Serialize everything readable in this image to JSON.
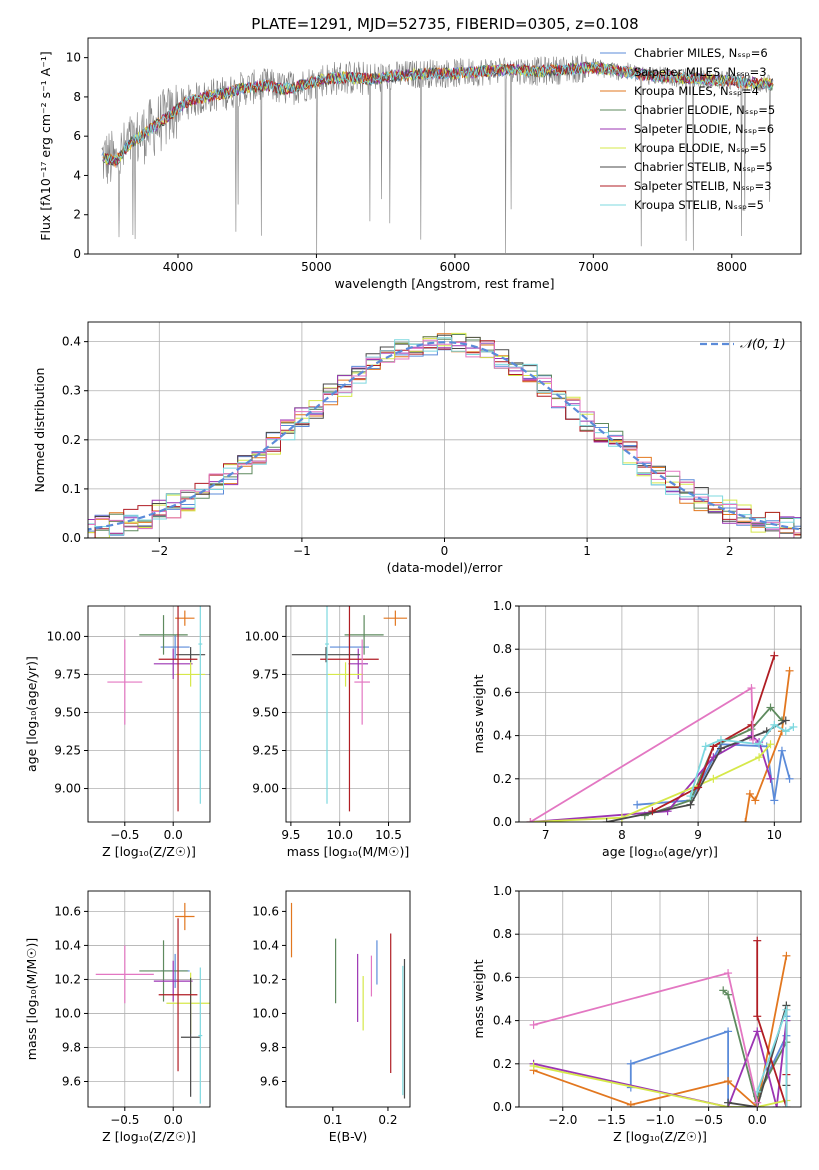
{
  "suptitle": "PLATE=1291, MJD=52735, FIBERID=0305, z=0.108",
  "chart_data": [
    {
      "type": "line",
      "id": "spectrum",
      "xlabel": "wavelength [Angstrom, rest frame]",
      "ylabel": "Flux [fλ10⁻¹⁷ erg cm⁻² s⁻¹ A⁻¹]",
      "xlim": [
        3350,
        8500
      ],
      "ylim": [
        0,
        11
      ],
      "xticks": [
        4000,
        5000,
        6000,
        7000,
        8000
      ],
      "yticks": [
        0,
        2,
        4,
        6,
        8,
        10
      ],
      "grid": false,
      "legend_position": "top-right",
      "data_color": "#808080",
      "data_note_series": [
        {
          "x": [
            3450,
            3550,
            3650,
            3750,
            3850,
            3950,
            4050,
            4150,
            4250,
            4350,
            4450,
            4550,
            4650,
            4750,
            4850,
            4950,
            5050,
            5200,
            5400,
            5600,
            5800,
            6000,
            6200,
            6400,
            6600,
            6800,
            7000,
            7200,
            7400,
            7600,
            7800,
            8000,
            8200,
            8300
          ],
          "y": [
            4.9,
            4.7,
            5.6,
            6.1,
            6.6,
            7.1,
            7.7,
            7.9,
            8.1,
            8.2,
            8.4,
            8.5,
            8.6,
            8.4,
            8.5,
            8.7,
            8.9,
            9.0,
            8.9,
            9.1,
            9.2,
            9.2,
            9.3,
            9.4,
            9.3,
            9.4,
            9.5,
            9.3,
            9.1,
            9.0,
            8.9,
            8.8,
            8.7,
            8.6
          ]
        }
      ],
      "series": [
        {
          "name": "Chabrier MILES, N_SSP=6",
          "color": "#5b8bd9"
        },
        {
          "name": "Salpeter MILES, N_SSP=3",
          "color": "#8d8d8d"
        },
        {
          "name": "Kroupa MILES, N_SSP=4",
          "color": "#e2771f"
        },
        {
          "name": "Chabrier ELODIE, N_SSP=5",
          "color": "#5e8a5e"
        },
        {
          "name": "Salpeter ELODIE, N_SSP=6",
          "color": "#9b34b3"
        },
        {
          "name": "Kroupa ELODIE, N_SSP=5",
          "color": "#d6e84a"
        },
        {
          "name": "Chabrier STELIB, N_SSP=5",
          "color": "#4a4a4a"
        },
        {
          "name": "Salpeter STELIB, N_SSP=3",
          "color": "#b01d24"
        },
        {
          "name": "Kroupa STELIB, N_SSP=5",
          "color": "#7ed8df"
        }
      ]
    },
    {
      "type": "histogram",
      "id": "residuals",
      "xlabel": "(data-model)/error",
      "ylabel": "Normed distribution",
      "xlim": [
        -2.5,
        2.5
      ],
      "ylim": [
        0,
        0.44
      ],
      "xticks": [
        -2,
        -1,
        0,
        1,
        2
      ],
      "yticks": [
        0.0,
        0.1,
        0.2,
        0.3,
        0.4
      ],
      "grid": true,
      "legend_position": "top-right",
      "reference_curve": {
        "label": "𝒩(0, 1)",
        "color": "#5b8bd9",
        "style": "dashed",
        "mean": 0,
        "sigma": 1
      },
      "bin_width": 0.1
    },
    {
      "type": "errorbar",
      "id": "age_vs_Z",
      "xlabel": "Z [log₁₀(Z/Z☉)]",
      "ylabel": "age  [log₁₀(age/yr)]",
      "xlim": [
        -0.88,
        0.38
      ],
      "ylim": [
        8.78,
        10.2
      ],
      "xticks": [
        -0.5,
        0.0
      ],
      "yticks": [
        9.0,
        9.25,
        9.5,
        9.75,
        10.0
      ],
      "grid": true,
      "points": [
        {
          "color": "#5b8bd9",
          "x": 0.02,
          "xerr": 0.15,
          "y": 9.93,
          "yerr": 0.08
        },
        {
          "color": "#e2771f",
          "x": 0.12,
          "xerr": 0.1,
          "y": 10.12,
          "yerr": 0.05
        },
        {
          "color": "#5e8a5e",
          "x": -0.1,
          "xerr": 0.25,
          "y": 10.01,
          "yerr": 0.13
        },
        {
          "color": "#9b34b3",
          "x": 0.0,
          "xerr": 0.2,
          "y": 9.82,
          "yerr": 0.1
        },
        {
          "color": "#d6e84a",
          "x": 0.18,
          "xerr": 0.15,
          "y": 9.75,
          "yerr": 0.08
        },
        {
          "color": "#4a4a4a",
          "x": 0.18,
          "xerr": 0.15,
          "y": 9.88,
          "yerr": 0.05
        },
        {
          "color": "#b01d24",
          "x": 0.05,
          "xerr": 0.2,
          "y": 9.85,
          "yerr": 1.0
        },
        {
          "color": "#7ed8df",
          "x": 0.28,
          "xerr": 0.02,
          "y": 9.95,
          "yerr": 1.05
        },
        {
          "color": "#e377c2",
          "x": -0.5,
          "xerr": 0.18,
          "y": 9.7,
          "yerr": 0.28
        }
      ]
    },
    {
      "type": "errorbar",
      "id": "age_vs_mass",
      "xlabel": "mass [log₁₀(M/M☉)]",
      "ylabel": "",
      "xlim": [
        9.45,
        10.72
      ],
      "ylim": [
        8.78,
        10.2
      ],
      "xticks": [
        9.5,
        10.0,
        10.5
      ],
      "yticks": [
        9.0,
        9.25,
        9.5,
        9.75,
        10.0
      ],
      "grid": true,
      "points": [
        {
          "color": "#5b8bd9",
          "x": 10.1,
          "xerr": 0.2,
          "y": 9.93,
          "yerr": 0.08
        },
        {
          "color": "#e2771f",
          "x": 10.57,
          "xerr": 0.12,
          "y": 10.12,
          "yerr": 0.05
        },
        {
          "color": "#5e8a5e",
          "x": 10.25,
          "xerr": 0.2,
          "y": 10.01,
          "yerr": 0.13
        },
        {
          "color": "#9b34b3",
          "x": 10.19,
          "xerr": 0.1,
          "y": 9.82,
          "yerr": 0.1
        },
        {
          "color": "#d6e84a",
          "x": 10.06,
          "xerr": 0.18,
          "y": 9.75,
          "yerr": 0.08
        },
        {
          "color": "#4a4a4a",
          "x": 9.86,
          "xerr": 0.35,
          "y": 9.88,
          "yerr": 0.05
        },
        {
          "color": "#b01d24",
          "x": 10.1,
          "xerr": 0.3,
          "y": 9.85,
          "yerr": 1.0
        },
        {
          "color": "#7ed8df",
          "x": 9.87,
          "xerr": 0.02,
          "y": 9.95,
          "yerr": 1.05
        },
        {
          "color": "#e377c2",
          "x": 10.23,
          "xerr": 0.08,
          "y": 9.7,
          "yerr": 0.28
        }
      ]
    },
    {
      "type": "line",
      "id": "weight_vs_age",
      "xlabel": "age  [log₁₀(age/yr)]",
      "ylabel": "mass weight",
      "xlim": [
        6.65,
        10.35
      ],
      "ylim": [
        0,
        1.0
      ],
      "xticks": [
        7,
        8,
        9,
        10
      ],
      "yticks": [
        0.0,
        0.2,
        0.4,
        0.6,
        0.8,
        1.0
      ],
      "grid": true,
      "series": [
        {
          "color": "#5b8bd9",
          "x": [
            8.2,
            8.9,
            9.3,
            9.9,
            10.0,
            10.1,
            10.2
          ],
          "y": [
            0.08,
            0.1,
            0.36,
            0.35,
            0.1,
            0.33,
            0.2
          ]
        },
        {
          "color": "#e2771f",
          "x": [
            9.62,
            9.68,
            9.75,
            10.1,
            10.2
          ],
          "y": [
            0.0,
            0.13,
            0.1,
            0.42,
            0.7
          ]
        },
        {
          "color": "#5e8a5e",
          "x": [
            8.3,
            8.9,
            9.2,
            9.7,
            9.95,
            10.1
          ],
          "y": [
            0.03,
            0.1,
            0.35,
            0.43,
            0.53,
            0.47
          ]
        },
        {
          "color": "#9b34b3",
          "x": [
            6.8,
            8.6,
            9.2,
            9.7,
            9.8,
            9.95
          ],
          "y": [
            0.0,
            0.05,
            0.3,
            0.4,
            0.37,
            0.2
          ]
        },
        {
          "color": "#d6e84a",
          "x": [
            6.8,
            8.0,
            9.2,
            9.8,
            9.95
          ],
          "y": [
            0.0,
            0.02,
            0.2,
            0.3,
            0.36
          ]
        },
        {
          "color": "#4a4a4a",
          "x": [
            7.8,
            8.9,
            9.3,
            9.9,
            10.15
          ],
          "y": [
            0.0,
            0.08,
            0.34,
            0.42,
            0.47
          ]
        },
        {
          "color": "#b01d24",
          "x": [
            8.4,
            9.0,
            9.2,
            9.7,
            10.0
          ],
          "y": [
            0.05,
            0.16,
            0.35,
            0.45,
            0.77
          ]
        },
        {
          "color": "#7ed8df",
          "x": [
            8.9,
            9.1,
            9.3,
            9.8,
            10.0,
            10.15,
            10.25
          ],
          "y": [
            0.12,
            0.35,
            0.38,
            0.36,
            0.45,
            0.42,
            0.44
          ]
        },
        {
          "color": "#e377c2",
          "x": [
            6.8,
            9.7,
            9.72
          ],
          "y": [
            0.0,
            0.62,
            0.38
          ]
        }
      ]
    },
    {
      "type": "errorbar",
      "id": "mass_vs_Z",
      "xlabel": "Z [log₁₀(Z/Z☉)]",
      "ylabel": "mass [log₁₀(M/M☉)]",
      "xlim": [
        -0.88,
        0.38
      ],
      "ylim": [
        9.45,
        10.72
      ],
      "xticks": [
        -0.5,
        0.0
      ],
      "yticks": [
        9.6,
        9.8,
        10.0,
        10.2,
        10.4,
        10.6
      ],
      "grid": true,
      "points": [
        {
          "color": "#5b8bd9",
          "x": 0.02,
          "xerr": 0.15,
          "y": 10.25,
          "yerr": 0.1
        },
        {
          "color": "#e2771f",
          "x": 0.12,
          "xerr": 0.1,
          "y": 10.57,
          "yerr": 0.08
        },
        {
          "color": "#5e8a5e",
          "x": -0.1,
          "xerr": 0.25,
          "y": 10.25,
          "yerr": 0.18
        },
        {
          "color": "#9b34b3",
          "x": 0.0,
          "xerr": 0.2,
          "y": 10.19,
          "yerr": 0.12
        },
        {
          "color": "#d6e84a",
          "x": 0.18,
          "xerr": 0.25,
          "y": 10.06,
          "yerr": 0.18
        },
        {
          "color": "#4a4a4a",
          "x": 0.18,
          "xerr": 0.1,
          "y": 9.86,
          "yerr": 0.35
        },
        {
          "color": "#b01d24",
          "x": 0.05,
          "xerr": 0.2,
          "y": 10.11,
          "yerr": 0.45
        },
        {
          "color": "#7ed8df",
          "x": 0.28,
          "xerr": 0.02,
          "y": 9.87,
          "yerr": 0.4
        },
        {
          "color": "#e377c2",
          "x": -0.5,
          "xerr": 0.3,
          "y": 10.23,
          "yerr": 0.17
        }
      ]
    },
    {
      "type": "errorbar",
      "id": "mass_vs_ebv",
      "xlabel": "E(B-V)",
      "ylabel": "",
      "xlim": [
        0.015,
        0.24
      ],
      "ylim": [
        9.45,
        10.72
      ],
      "xticks": [
        0.1,
        0.2
      ],
      "yticks": [
        9.6,
        9.8,
        10.0,
        10.2,
        10.4,
        10.6
      ],
      "grid": false,
      "points": [
        {
          "color": "#5b8bd9",
          "x": 0.18,
          "yerr": 0.13,
          "y": 10.3
        },
        {
          "color": "#e2771f",
          "x": 0.025,
          "yerr": 0.16,
          "y": 10.49
        },
        {
          "color": "#5e8a5e",
          "x": 0.105,
          "yerr": 0.19,
          "y": 10.25
        },
        {
          "color": "#9b34b3",
          "x": 0.145,
          "yerr": 0.2,
          "y": 10.15
        },
        {
          "color": "#d6e84a",
          "x": 0.155,
          "yerr": 0.16,
          "y": 10.06
        },
        {
          "color": "#4a4a4a",
          "x": 0.23,
          "yerr": 0.41,
          "y": 9.91
        },
        {
          "color": "#b01d24",
          "x": 0.205,
          "yerr": 0.41,
          "y": 10.06
        },
        {
          "color": "#7ed8df",
          "x": 0.227,
          "yerr": 0.38,
          "y": 9.9
        },
        {
          "color": "#e377c2",
          "x": 0.17,
          "yerr": 0.12,
          "y": 10.22
        }
      ]
    },
    {
      "type": "line",
      "id": "weight_vs_Z",
      "xlabel": "Z [log₁₀(Z/Z☉)]",
      "ylabel": "mass weight",
      "xlim": [
        -2.45,
        0.45
      ],
      "ylim": [
        0,
        1.0
      ],
      "xticks": [
        -2.0,
        -1.5,
        -1.0,
        -0.5,
        0.0
      ],
      "yticks": [
        0.0,
        0.2,
        0.4,
        0.6,
        0.8,
        1.0
      ],
      "grid": true,
      "series": [
        {
          "color": "#5b8bd9",
          "x": [
            -1.3,
            -1.3,
            -0.3,
            -0.3,
            0.0,
            0.0,
            0.3,
            0.3
          ],
          "y": [
            0.09,
            0.2,
            0.35,
            0.0,
            0.0,
            0.05,
            0.33,
            0.42
          ]
        },
        {
          "color": "#e2771f",
          "x": [
            -2.3,
            -1.3,
            -0.3,
            0.0,
            0.3
          ],
          "y": [
            0.17,
            0.01,
            0.12,
            0.0,
            0.7
          ]
        },
        {
          "color": "#5e8a5e",
          "x": [
            -0.35,
            -0.3,
            0.0,
            0.0,
            0.3,
            0.3
          ],
          "y": [
            0.54,
            0.52,
            0.0,
            0.05,
            0.3,
            0.47
          ]
        },
        {
          "color": "#9b34b3",
          "x": [
            -2.3,
            -0.3,
            0.0,
            0.2,
            0.3
          ],
          "y": [
            0.2,
            0.0,
            0.35,
            0.0,
            0.4
          ]
        },
        {
          "color": "#d6e84a",
          "x": [
            -2.3,
            -0.3,
            0.0,
            0.3
          ],
          "y": [
            0.19,
            0.0,
            0.0,
            0.03
          ]
        },
        {
          "color": "#4a4a4a",
          "x": [
            -0.3,
            0.0,
            0.3,
            0.3
          ],
          "y": [
            0.02,
            0.0,
            0.47,
            0.1
          ]
        },
        {
          "color": "#b01d24",
          "x": [
            0.0,
            0.0,
            0.3,
            0.3
          ],
          "y": [
            0.77,
            0.42,
            0.0,
            0.15
          ]
        },
        {
          "color": "#7ed8df",
          "x": [
            0.0,
            0.3,
            0.3
          ],
          "y": [
            0.07,
            0.45,
            0.0
          ]
        },
        {
          "color": "#e377c2",
          "x": [
            -2.3,
            -0.3,
            0.0
          ],
          "y": [
            0.38,
            0.62,
            0.02
          ]
        }
      ]
    }
  ]
}
